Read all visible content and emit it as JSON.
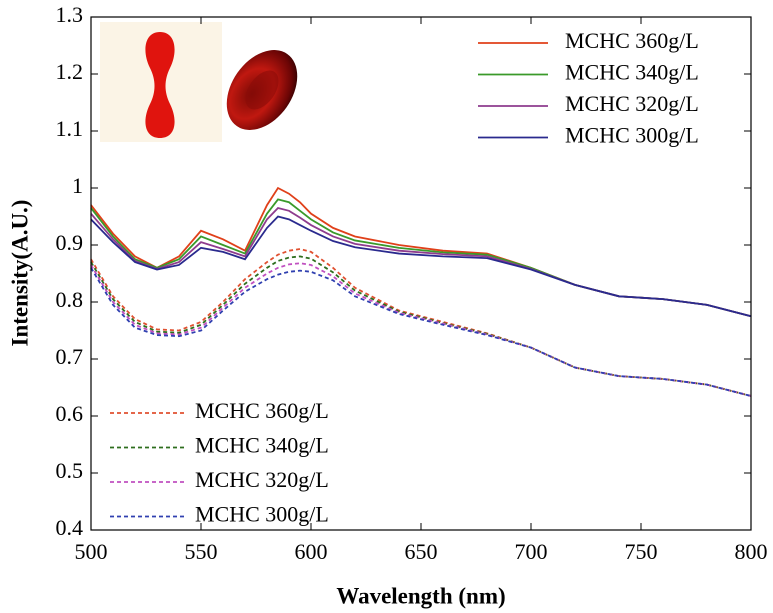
{
  "chart_data": {
    "type": "line",
    "xlabel": "Wavelength (nm)",
    "ylabel": "Intensity(A.U.)",
    "x": [
      500,
      510,
      520,
      530,
      540,
      550,
      560,
      570,
      580,
      585,
      590,
      595,
      600,
      610,
      620,
      640,
      660,
      680,
      700,
      720,
      740,
      760,
      780,
      800
    ],
    "xlim": [
      500,
      800
    ],
    "xticks": [
      500,
      550,
      600,
      650,
      700,
      750,
      800
    ],
    "ylim": [
      0.4,
      1.3
    ],
    "yticks": [
      0.4,
      0.5,
      0.6,
      0.7,
      0.8,
      0.9,
      1,
      1.1,
      1.2,
      1.3
    ],
    "grid": false,
    "legend_locations": {
      "solid": "upper right",
      "dashed": "lower left"
    },
    "series": [
      {
        "name": "MCHC 360g/L",
        "color": "#e0401a",
        "linestyle": "solid",
        "values": [
          0.97,
          0.92,
          0.88,
          0.86,
          0.88,
          0.925,
          0.91,
          0.89,
          0.97,
          1.0,
          0.99,
          0.975,
          0.955,
          0.93,
          0.915,
          0.9,
          0.89,
          0.885,
          0.86,
          0.83,
          0.81,
          0.805,
          0.795,
          0.775
        ]
      },
      {
        "name": "MCHC 340g/L",
        "color": "#3a9a2a",
        "linestyle": "solid",
        "values": [
          0.965,
          0.915,
          0.875,
          0.86,
          0.875,
          0.915,
          0.9,
          0.885,
          0.955,
          0.98,
          0.975,
          0.96,
          0.945,
          0.922,
          0.908,
          0.895,
          0.887,
          0.883,
          0.86,
          0.83,
          0.81,
          0.805,
          0.795,
          0.775
        ]
      },
      {
        "name": "MCHC 320g/L",
        "color": "#8e3c8e",
        "linestyle": "solid",
        "values": [
          0.955,
          0.91,
          0.872,
          0.858,
          0.87,
          0.905,
          0.893,
          0.88,
          0.945,
          0.965,
          0.96,
          0.948,
          0.935,
          0.915,
          0.902,
          0.89,
          0.884,
          0.88,
          0.858,
          0.83,
          0.81,
          0.805,
          0.795,
          0.775
        ]
      },
      {
        "name": "MCHC 300g/L",
        "color": "#2a2a8e",
        "linestyle": "solid",
        "values": [
          0.945,
          0.905,
          0.87,
          0.857,
          0.865,
          0.895,
          0.888,
          0.875,
          0.93,
          0.95,
          0.945,
          0.935,
          0.925,
          0.907,
          0.896,
          0.885,
          0.88,
          0.877,
          0.857,
          0.83,
          0.81,
          0.805,
          0.795,
          0.775
        ]
      },
      {
        "name": "MCHC 360g/L",
        "color": "#e05030",
        "linestyle": "dashed",
        "values": [
          0.875,
          0.81,
          0.77,
          0.752,
          0.75,
          0.765,
          0.8,
          0.84,
          0.87,
          0.883,
          0.89,
          0.893,
          0.888,
          0.86,
          0.825,
          0.785,
          0.765,
          0.745,
          0.72,
          0.685,
          0.67,
          0.665,
          0.655,
          0.635
        ]
      },
      {
        "name": "MCHC 340g/L",
        "color": "#2e6e1e",
        "linestyle": "dashed",
        "values": [
          0.87,
          0.805,
          0.765,
          0.748,
          0.746,
          0.76,
          0.795,
          0.832,
          0.86,
          0.872,
          0.878,
          0.88,
          0.876,
          0.852,
          0.82,
          0.783,
          0.763,
          0.744,
          0.72,
          0.685,
          0.67,
          0.665,
          0.655,
          0.635
        ]
      },
      {
        "name": "MCHC 320g/L",
        "color": "#c050c0",
        "linestyle": "dashed",
        "values": [
          0.865,
          0.8,
          0.76,
          0.745,
          0.743,
          0.755,
          0.79,
          0.825,
          0.85,
          0.86,
          0.866,
          0.868,
          0.865,
          0.845,
          0.815,
          0.781,
          0.762,
          0.743,
          0.72,
          0.685,
          0.67,
          0.665,
          0.655,
          0.635
        ]
      },
      {
        "name": "MCHC 300g/L",
        "color": "#3040b0",
        "linestyle": "dashed",
        "values": [
          0.86,
          0.795,
          0.755,
          0.742,
          0.74,
          0.75,
          0.785,
          0.818,
          0.84,
          0.848,
          0.853,
          0.855,
          0.853,
          0.838,
          0.81,
          0.779,
          0.76,
          0.742,
          0.72,
          0.685,
          0.67,
          0.665,
          0.655,
          0.635
        ]
      }
    ]
  }
}
